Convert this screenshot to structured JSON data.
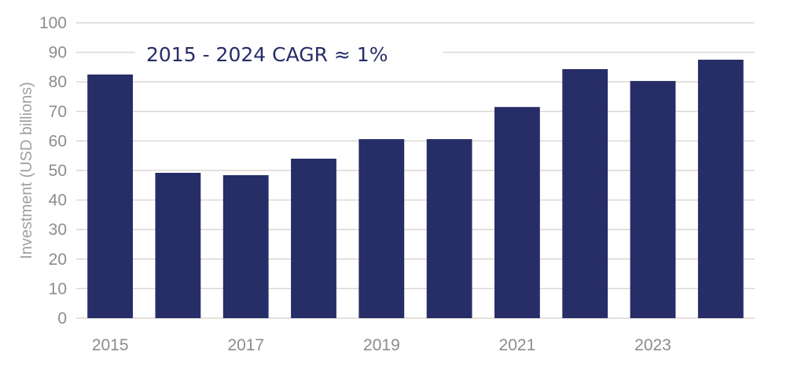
{
  "chart_data": {
    "type": "bar",
    "title": "",
    "xlabel": "",
    "ylabel": "Investment (USD billions)",
    "categories": [
      "2015",
      "2016",
      "2017",
      "2018",
      "2019",
      "2020",
      "2021",
      "2022",
      "2023",
      "2024"
    ],
    "x_tick_labels": [
      "2015",
      "",
      "2017",
      "",
      "2019",
      "",
      "2021",
      "",
      "2023",
      ""
    ],
    "values": [
      82.5,
      49.2,
      48.4,
      54.0,
      60.6,
      60.6,
      71.5,
      84.3,
      80.3,
      87.5
    ],
    "ylim": [
      0,
      100
    ],
    "yticks": [
      0,
      10,
      20,
      30,
      40,
      50,
      60,
      70,
      80,
      90,
      100
    ],
    "grid": true,
    "legend": null,
    "bar_color": "#262d67",
    "annotations": [
      {
        "text": "2015 - 2024 CAGR ≈ 1%",
        "position": "top-left"
      }
    ]
  }
}
